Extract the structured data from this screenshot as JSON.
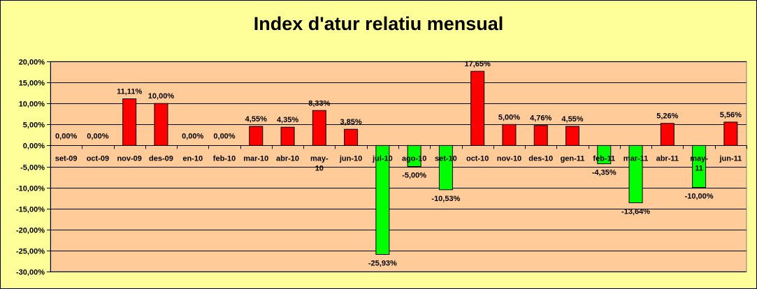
{
  "chart_data": {
    "type": "bar",
    "title": "Index d'atur relatiu mensual",
    "xlabel": "",
    "ylabel": "",
    "ylim": [
      -0.3,
      0.2
    ],
    "ytick_step": 0.05,
    "grid": true,
    "legend": "none",
    "colors": {
      "positive": "#ff0000",
      "negative": "#00ff00",
      "plot_bg": "#ffcc99",
      "chart_bg": "#ffff99"
    },
    "categories": [
      "set-09",
      "oct-09",
      "nov-09",
      "des-09",
      "en-10",
      "feb-10",
      "mar-10",
      "abr-10",
      "may-10",
      "jun-10",
      "jul-10",
      "ago-10",
      "set-10",
      "oct-10",
      "nov-10",
      "des-10",
      "gen-11",
      "feb-11",
      "mar-11",
      "abr-11",
      "may-11",
      "jun-11"
    ],
    "values": [
      0.0,
      0.0,
      0.1111,
      0.1,
      0.0,
      0.0,
      0.0455,
      0.0435,
      0.0833,
      0.0385,
      -0.2593,
      -0.05,
      -0.1053,
      0.1765,
      0.05,
      0.0476,
      0.0455,
      -0.0435,
      -0.1364,
      0.0526,
      -0.1,
      0.0556
    ],
    "data_labels": [
      "0,00%",
      "0,00%",
      "11,11%",
      "10,00%",
      "0,00%",
      "0,00%",
      "4,55%",
      "4,35%",
      "8,33%",
      "3,85%",
      "-25,93%",
      "-5,00%",
      "-10,53%",
      "17,65%",
      "5,00%",
      "4,76%",
      "4,55%",
      "-4,35%",
      "-13,64%",
      "5,26%",
      "-10,00%",
      "5,56%"
    ],
    "ytick_labels": [
      "20,00%",
      "15,00%",
      "10,00%",
      "5,00%",
      "0,00%",
      "-5,00%",
      "-10,00%",
      "-15,00%",
      "-20,00%",
      "-25,00%",
      "-30,00%"
    ]
  }
}
